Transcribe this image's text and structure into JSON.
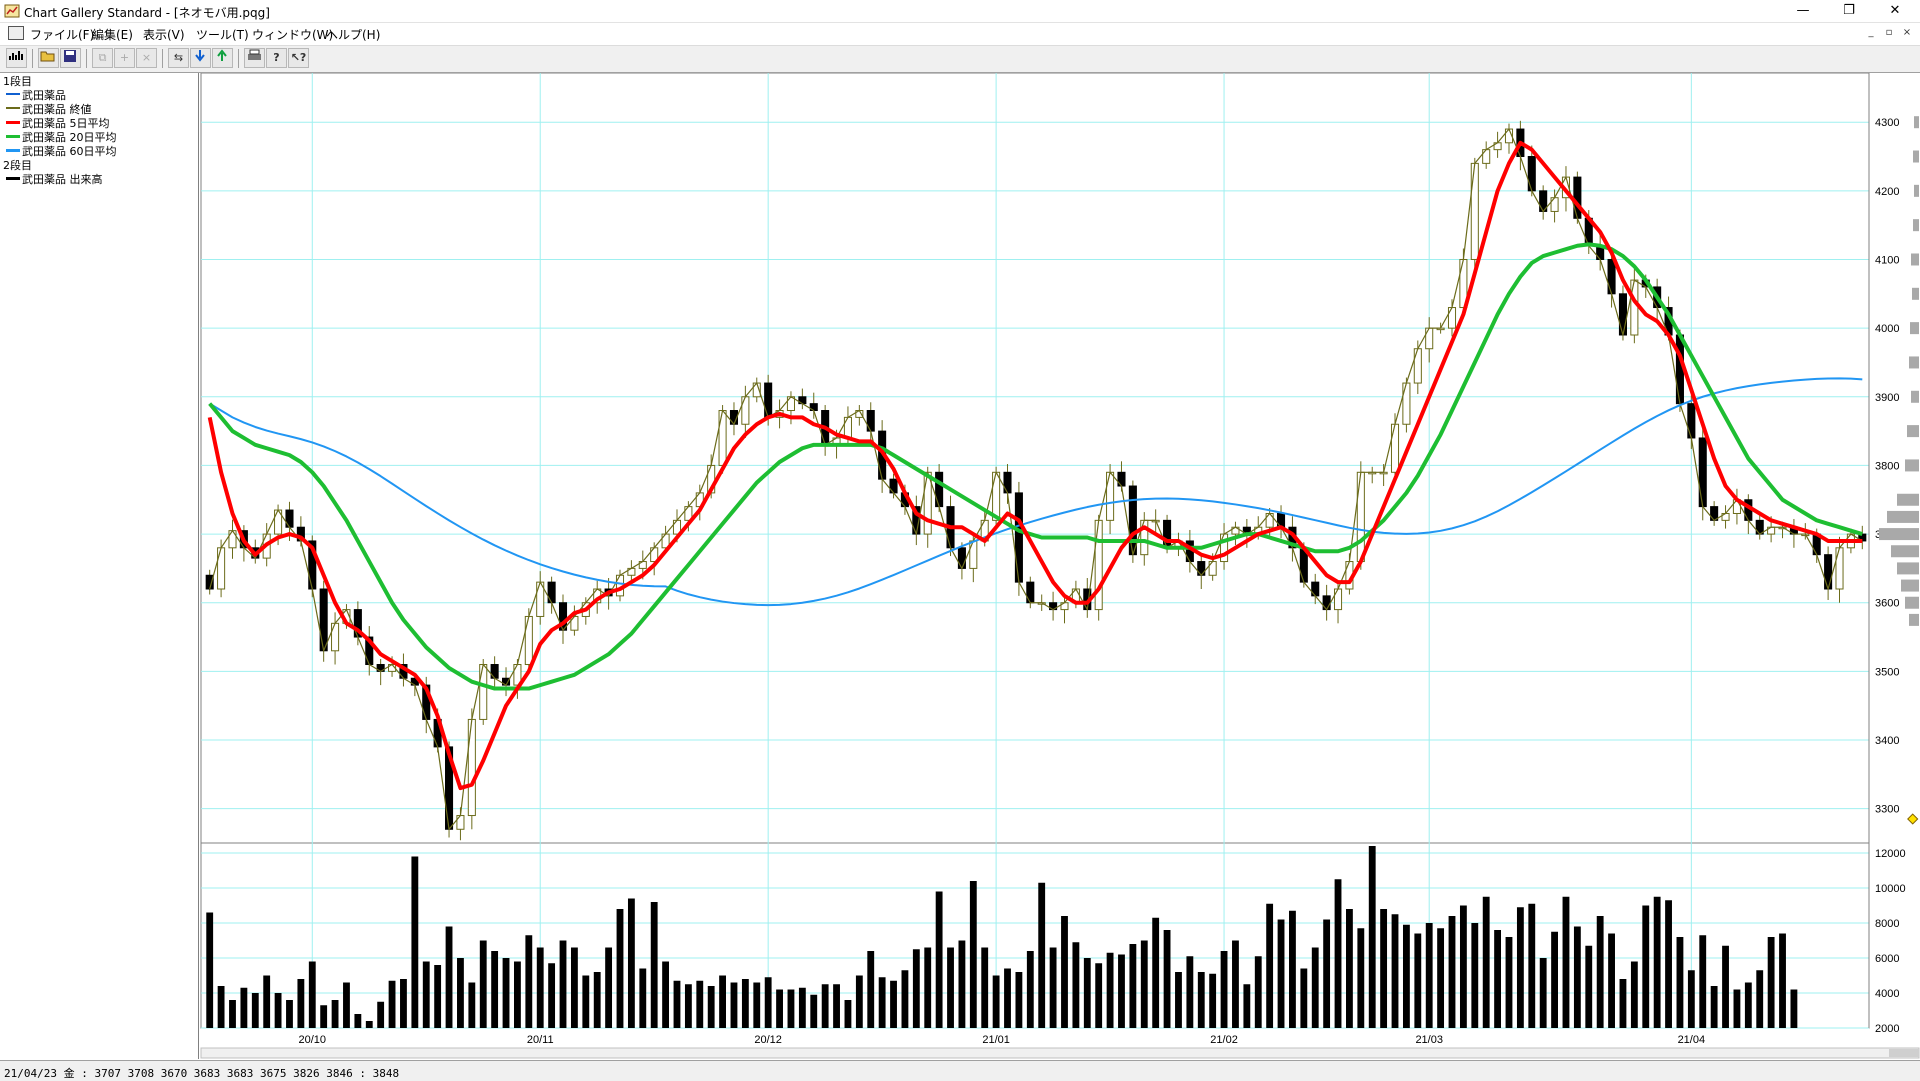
{
  "window": {
    "title": "Chart Gallery Standard - [ネオモバ用.pqg]",
    "minimize_glyph": "—",
    "restore_glyph": "❐",
    "close_glyph": "✕"
  },
  "menu": [
    "ファイル(F)",
    "編集(E)",
    "表示(V)",
    "ツール(T)",
    "ウィンドウ(W)",
    "ヘルプ(H)"
  ],
  "toolbar_icons": [
    "chart-icon",
    "open-icon",
    "save-icon",
    "copy-icon",
    "add-icon",
    "delete-icon",
    "scroll-left-icon",
    "download-icon",
    "upload-icon",
    "print-icon",
    "help-icon",
    "context-help-icon"
  ],
  "legend": {
    "panel1": "1段目",
    "panel2": "2段目",
    "items1": [
      {
        "label": "武田薬品",
        "color": "#1060d0"
      },
      {
        "label": "武田薬品 終値",
        "color": "#6b6b1a"
      },
      {
        "label": "武田薬品 5日平均",
        "color": "#ff0000"
      },
      {
        "label": "武田薬品 20日平均",
        "color": "#1ebe32"
      },
      {
        "label": "武田薬品 60日平均",
        "color": "#2196f3"
      }
    ],
    "items2": [
      {
        "label": "武田薬品 出来高",
        "color": "#000000"
      }
    ]
  },
  "status": "21/04/23 金 : 3707 3708 3670 3683  3683 3675 3826 3846 : 3848",
  "chart_data": {
    "type": "candlestick",
    "price_ylim": [
      3250,
      4360
    ],
    "price_ticks": [
      3300,
      3400,
      3500,
      3600,
      3700,
      3800,
      3900,
      4000,
      4100,
      4200,
      4300
    ],
    "volume_ylim": [
      2000,
      12000
    ],
    "volume_ticks": [
      2000,
      4000,
      6000,
      8000,
      10000,
      12000
    ],
    "x_ticks": [
      {
        "i": 9,
        "label": "20/10"
      },
      {
        "i": 29,
        "label": "20/11"
      },
      {
        "i": 49,
        "label": "20/12"
      },
      {
        "i": 69,
        "label": "21/01"
      },
      {
        "i": 89,
        "label": "21/02"
      },
      {
        "i": 107,
        "label": "21/03"
      },
      {
        "i": 130,
        "label": "21/04"
      }
    ],
    "closes": [
      3620,
      3680,
      3705,
      3680,
      3665,
      3700,
      3735,
      3710,
      3690,
      3620,
      3530,
      3570,
      3590,
      3550,
      3510,
      3500,
      3510,
      3490,
      3480,
      3430,
      3390,
      3270,
      3290,
      3430,
      3510,
      3490,
      3480,
      3510,
      3580,
      3630,
      3600,
      3560,
      3580,
      3600,
      3620,
      3610,
      3640,
      3650,
      3660,
      3680,
      3700,
      3720,
      3740,
      3760,
      3800,
      3880,
      3860,
      3900,
      3920,
      3870,
      3880,
      3900,
      3890,
      3880,
      3830,
      3840,
      3870,
      3880,
      3850,
      3780,
      3760,
      3740,
      3700,
      3790,
      3740,
      3680,
      3650,
      3690,
      3720,
      3790,
      3760,
      3630,
      3600,
      3600,
      3590,
      3600,
      3620,
      3590,
      3720,
      3790,
      3770,
      3670,
      3720,
      3720,
      3680,
      3690,
      3660,
      3640,
      3660,
      3700,
      3710,
      3700,
      3710,
      3730,
      3710,
      3680,
      3630,
      3610,
      3590,
      3620,
      3660,
      3790,
      3790,
      3790,
      3860,
      3920,
      3970,
      4000,
      4000,
      4030,
      4100,
      4240,
      4260,
      4270,
      4290,
      4250,
      4200,
      4170,
      4190,
      4220,
      4160,
      4120,
      4100,
      4050,
      3990,
      4070,
      4060,
      4030,
      3990,
      3890,
      3840,
      3740,
      3720,
      3730,
      3750,
      3720,
      3700,
      3710,
      3710,
      3700,
      3700,
      3670,
      3620,
      3680,
      3700,
      3690
    ],
    "volumes": [
      8600,
      4400,
      3600,
      4300,
      4000,
      5000,
      4000,
      3600,
      4800,
      5800,
      3300,
      3600,
      4600,
      2800,
      2400,
      3500,
      4700,
      4800,
      11800,
      5800,
      5600,
      7800,
      6000,
      4600,
      7000,
      6400,
      6000,
      5800,
      7300,
      6600,
      5700,
      7000,
      6600,
      5000,
      5200,
      6600,
      8800,
      9400,
      5400,
      9200,
      5800,
      4700,
      4500,
      4700,
      4400,
      5000,
      4600,
      4800,
      4600,
      4900,
      4200,
      4200,
      4300,
      3900,
      4500,
      4500,
      3600,
      5000,
      6400,
      4900,
      4700,
      5300,
      6500,
      6600,
      9800,
      6600,
      7000,
      10400,
      6600,
      5000,
      5400,
      5200,
      6400,
      10300,
      6600,
      8400,
      6900,
      6000,
      5700,
      6300,
      6200,
      6800,
      7000,
      8300,
      7600,
      5200,
      6100,
      5200,
      5100,
      6400,
      7000,
      4500,
      6100,
      9100,
      8200,
      8700,
      5400,
      6600,
      8200,
      10500,
      8800,
      7700,
      12400,
      8800,
      8500,
      7900,
      7400,
      8000,
      7700,
      8400,
      9000,
      8000,
      9500,
      7600,
      7200,
      8900,
      9100,
      6000,
      7500,
      9500,
      7800,
      6700,
      8400,
      7400,
      4800,
      5800,
      9000,
      9500,
      9300,
      7200,
      5300,
      7300,
      4400,
      6700,
      4200,
      4600,
      5300,
      7200,
      7400,
      4200
    ],
    "ma5": [
      3870,
      3790,
      3730,
      3690,
      3670,
      3685,
      3695,
      3700,
      3695,
      3680,
      3640,
      3600,
      3570,
      3560,
      3545,
      3525,
      3515,
      3505,
      3495,
      3475,
      3435,
      3380,
      3330,
      3335,
      3370,
      3410,
      3450,
      3475,
      3500,
      3540,
      3560,
      3570,
      3585,
      3590,
      3605,
      3615,
      3620,
      3630,
      3640,
      3655,
      3675,
      3695,
      3715,
      3735,
      3765,
      3795,
      3825,
      3845,
      3860,
      3870,
      3875,
      3870,
      3870,
      3860,
      3855,
      3845,
      3840,
      3835,
      3835,
      3820,
      3795,
      3760,
      3730,
      3720,
      3715,
      3710,
      3710,
      3700,
      3690,
      3710,
      3730,
      3720,
      3690,
      3660,
      3630,
      3610,
      3600,
      3600,
      3620,
      3650,
      3680,
      3700,
      3710,
      3700,
      3690,
      3690,
      3680,
      3670,
      3665,
      3670,
      3680,
      3690,
      3700,
      3705,
      3710,
      3700,
      3680,
      3660,
      3640,
      3630,
      3630,
      3660,
      3700,
      3740,
      3780,
      3820,
      3860,
      3900,
      3940,
      3980,
      4020,
      4080,
      4140,
      4200,
      4240,
      4270,
      4260,
      4240,
      4220,
      4200,
      4180,
      4160,
      4140,
      4110,
      4070,
      4040,
      4020,
      4010,
      3990,
      3960,
      3910,
      3860,
      3810,
      3770,
      3750,
      3740,
      3730,
      3720,
      3715,
      3710,
      3705,
      3700,
      3690,
      3690,
      3690,
      3690
    ],
    "ma20": [
      3890,
      3870,
      3850,
      3840,
      3830,
      3825,
      3820,
      3815,
      3805,
      3790,
      3770,
      3745,
      3720,
      3690,
      3660,
      3630,
      3600,
      3575,
      3555,
      3535,
      3520,
      3505,
      3495,
      3485,
      3480,
      3475,
      3475,
      3475,
      3475,
      3480,
      3485,
      3490,
      3495,
      3505,
      3515,
      3525,
      3540,
      3555,
      3575,
      3595,
      3615,
      3635,
      3655,
      3675,
      3695,
      3715,
      3735,
      3755,
      3775,
      3790,
      3805,
      3815,
      3825,
      3830,
      3830,
      3830,
      3830,
      3830,
      3830,
      3825,
      3815,
      3805,
      3795,
      3785,
      3775,
      3765,
      3755,
      3745,
      3735,
      3725,
      3715,
      3705,
      3700,
      3695,
      3695,
      3695,
      3695,
      3695,
      3690,
      3690,
      3690,
      3690,
      3690,
      3685,
      3680,
      3680,
      3680,
      3680,
      3685,
      3690,
      3695,
      3700,
      3700,
      3695,
      3690,
      3685,
      3680,
      3675,
      3675,
      3675,
      3680,
      3690,
      3705,
      3720,
      3740,
      3760,
      3785,
      3815,
      3845,
      3880,
      3915,
      3950,
      3985,
      4020,
      4050,
      4075,
      4095,
      4105,
      4110,
      4115,
      4120,
      4122,
      4120,
      4115,
      4105,
      4090,
      4070,
      4045,
      4020,
      3990,
      3960,
      3930,
      3900,
      3870,
      3840,
      3810,
      3790,
      3770,
      3750,
      3740,
      3730,
      3720,
      3715,
      3710,
      3705,
      3700
    ]
  }
}
